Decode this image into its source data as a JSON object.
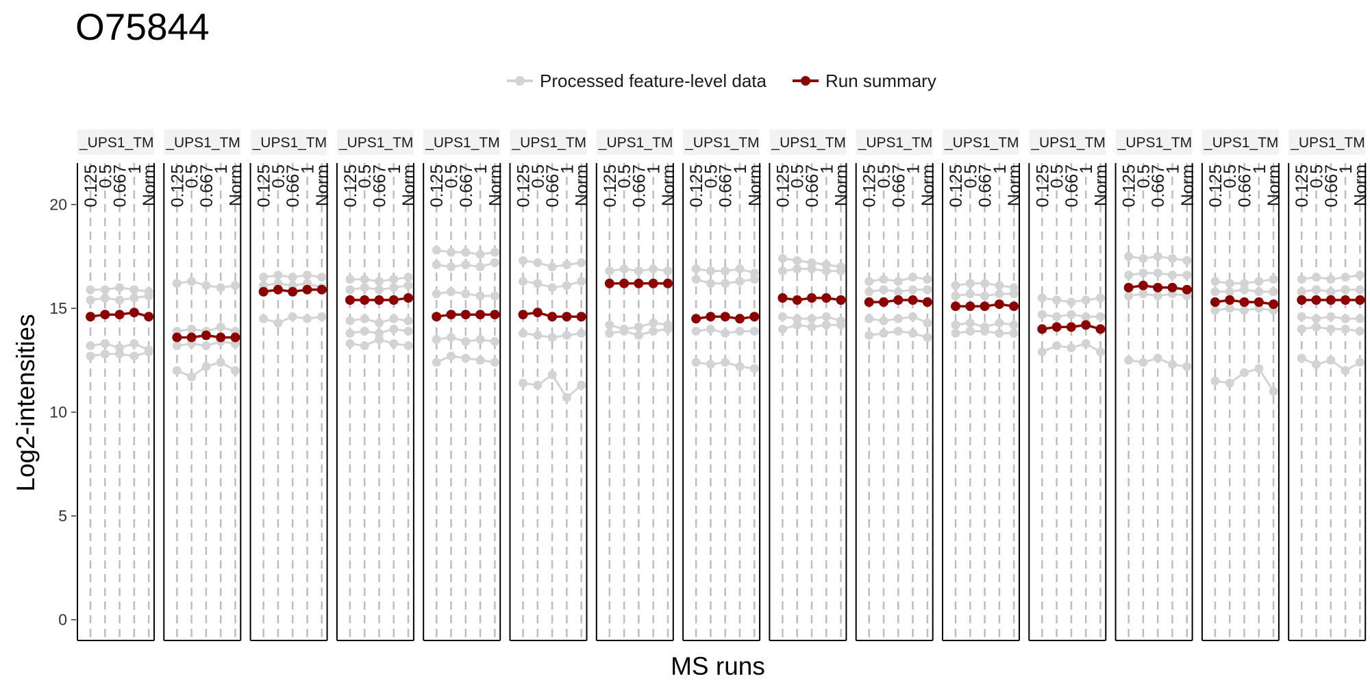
{
  "chart_data": {
    "type": "line",
    "title": "O75844",
    "xlabel": "MS runs",
    "ylabel": "Log2-intensities",
    "ylim": [
      -1,
      22
    ],
    "yticks": [
      0,
      5,
      10,
      15,
      20
    ],
    "legend": {
      "position": "top",
      "entries": [
        {
          "name": "Processed feature-level data",
          "color": "#d3d3d3"
        },
        {
          "name": "Run summary",
          "color": "#8b0000"
        }
      ]
    },
    "facet_label": "_UPS1_TM",
    "run_labels": [
      "0.125",
      "0.5",
      "0.667",
      "1",
      "Norm"
    ],
    "colors": {
      "feature": "#d3d3d3",
      "summary": "#8b0000",
      "frame": "#000000",
      "strip": "#f2f2f2",
      "guide": "#bdbdbd"
    },
    "panels": [
      {
        "summary": [
          14.6,
          14.7,
          14.7,
          14.8,
          14.6
        ],
        "features": [
          [
            15.9,
            15.9,
            16.0,
            15.9,
            15.8
          ],
          [
            15.4,
            15.5,
            15.4,
            15.5,
            15.6
          ],
          [
            13.2,
            13.3,
            13.1,
            13.3,
            13.0
          ],
          [
            12.7,
            12.8,
            12.8,
            12.7,
            12.9
          ]
        ]
      },
      {
        "summary": [
          13.6,
          13.6,
          13.7,
          13.6,
          13.6
        ],
        "features": [
          [
            16.2,
            16.3,
            16.1,
            16.0,
            16.1
          ],
          [
            13.9,
            14.0,
            13.9,
            14.1,
            13.9
          ],
          [
            13.2,
            13.3,
            13.2,
            13.4,
            13.3
          ],
          [
            12.0,
            11.7,
            12.2,
            12.4,
            12.0
          ]
        ]
      },
      {
        "summary": [
          15.8,
          15.9,
          15.8,
          15.9,
          15.9
        ],
        "features": [
          [
            16.5,
            16.6,
            16.5,
            16.6,
            16.5
          ],
          [
            16.1,
            16.2,
            16.1,
            16.2,
            16.0
          ],
          [
            14.5,
            14.3,
            14.6,
            14.5,
            14.6
          ]
        ]
      },
      {
        "summary": [
          15.4,
          15.4,
          15.4,
          15.4,
          15.5
        ],
        "features": [
          [
            16.4,
            16.4,
            16.3,
            16.4,
            16.5
          ],
          [
            15.9,
            16.0,
            15.9,
            16.0,
            16.1
          ],
          [
            14.4,
            14.5,
            14.3,
            14.5,
            14.4
          ],
          [
            13.8,
            13.9,
            13.8,
            14.0,
            13.9
          ],
          [
            13.3,
            13.2,
            13.5,
            13.3,
            13.2
          ]
        ]
      },
      {
        "summary": [
          14.6,
          14.7,
          14.7,
          14.7,
          14.7
        ],
        "features": [
          [
            17.8,
            17.7,
            17.7,
            17.6,
            17.7
          ],
          [
            17.1,
            17.0,
            17.1,
            17.0,
            17.2
          ],
          [
            15.7,
            15.8,
            15.7,
            15.6,
            15.6
          ],
          [
            13.5,
            13.6,
            13.4,
            13.5,
            13.4
          ],
          [
            12.4,
            12.7,
            12.6,
            12.5,
            12.4
          ]
        ]
      },
      {
        "summary": [
          14.7,
          14.8,
          14.6,
          14.6,
          14.6
        ],
        "features": [
          [
            17.3,
            17.2,
            17.0,
            17.1,
            17.2
          ],
          [
            16.3,
            16.2,
            16.0,
            16.1,
            16.3
          ],
          [
            13.8,
            13.7,
            13.6,
            13.7,
            13.8
          ],
          [
            11.4,
            11.3,
            11.8,
            10.7,
            11.3
          ]
        ]
      },
      {
        "summary": [
          16.2,
          16.2,
          16.2,
          16.2,
          16.2
        ],
        "features": [
          [
            16.8,
            16.9,
            16.8,
            16.9,
            16.8
          ],
          [
            14.2,
            14.0,
            14.1,
            14.3,
            14.2
          ],
          [
            13.8,
            13.9,
            13.7,
            13.9,
            14.0
          ]
        ]
      },
      {
        "summary": [
          14.5,
          14.6,
          14.6,
          14.5,
          14.6
        ],
        "features": [
          [
            16.9,
            16.8,
            16.8,
            16.9,
            16.7
          ],
          [
            16.4,
            16.2,
            16.2,
            16.3,
            16.4
          ],
          [
            13.9,
            14.0,
            13.8,
            13.9,
            13.9
          ],
          [
            12.4,
            12.3,
            12.4,
            12.2,
            12.1
          ]
        ]
      },
      {
        "summary": [
          15.5,
          15.4,
          15.5,
          15.5,
          15.4
        ],
        "features": [
          [
            17.4,
            17.3,
            17.2,
            17.1,
            17.0
          ],
          [
            16.8,
            16.9,
            16.9,
            16.8,
            16.8
          ],
          [
            14.6,
            14.5,
            14.5,
            14.6,
            14.4
          ],
          [
            14.0,
            14.2,
            14.1,
            14.2,
            14.2
          ]
        ]
      },
      {
        "summary": [
          15.3,
          15.3,
          15.4,
          15.4,
          15.3
        ],
        "features": [
          [
            16.3,
            16.4,
            16.3,
            16.5,
            16.4
          ],
          [
            15.8,
            15.9,
            15.8,
            15.9,
            15.9
          ],
          [
            14.5,
            14.4,
            14.5,
            14.6,
            14.3
          ],
          [
            13.7,
            13.8,
            13.9,
            13.8,
            13.6
          ]
        ]
      },
      {
        "summary": [
          15.1,
          15.1,
          15.1,
          15.2,
          15.1
        ],
        "features": [
          [
            16.1,
            16.2,
            16.2,
            16.1,
            16.0
          ],
          [
            15.6,
            15.7,
            15.6,
            15.7,
            15.7
          ],
          [
            14.2,
            14.3,
            14.1,
            14.3,
            14.2
          ],
          [
            13.8,
            13.9,
            13.9,
            13.8,
            13.8
          ]
        ]
      },
      {
        "summary": [
          14.0,
          14.1,
          14.1,
          14.2,
          14.0
        ],
        "features": [
          [
            15.5,
            15.4,
            15.3,
            15.4,
            15.5
          ],
          [
            14.7,
            14.6,
            14.7,
            14.6,
            14.6
          ],
          [
            12.9,
            13.2,
            13.1,
            13.3,
            12.9
          ]
        ]
      },
      {
        "summary": [
          16.0,
          16.1,
          16.0,
          16.0,
          15.9
        ],
        "features": [
          [
            17.5,
            17.4,
            17.5,
            17.4,
            17.3
          ],
          [
            16.6,
            16.7,
            16.7,
            16.6,
            16.6
          ],
          [
            15.6,
            15.7,
            15.6,
            15.7,
            15.6
          ],
          [
            12.5,
            12.4,
            12.6,
            12.3,
            12.2
          ]
        ]
      },
      {
        "summary": [
          15.3,
          15.4,
          15.3,
          15.3,
          15.2
        ],
        "features": [
          [
            16.3,
            16.2,
            16.2,
            16.3,
            16.4
          ],
          [
            15.8,
            15.8,
            15.9,
            15.8,
            15.8
          ],
          [
            14.9,
            15.0,
            14.9,
            15.0,
            14.9
          ],
          [
            11.5,
            11.4,
            11.9,
            12.1,
            11.0
          ]
        ]
      },
      {
        "summary": [
          15.4,
          15.4,
          15.4,
          15.4,
          15.4
        ],
        "features": [
          [
            16.4,
            16.5,
            16.4,
            16.5,
            16.6
          ],
          [
            15.8,
            15.9,
            15.8,
            15.9,
            15.9
          ],
          [
            14.6,
            14.5,
            14.6,
            14.5,
            14.5
          ],
          [
            14.0,
            14.1,
            14.0,
            14.0,
            13.9
          ],
          [
            12.6,
            12.3,
            12.5,
            12.0,
            12.4
          ]
        ]
      }
    ]
  }
}
